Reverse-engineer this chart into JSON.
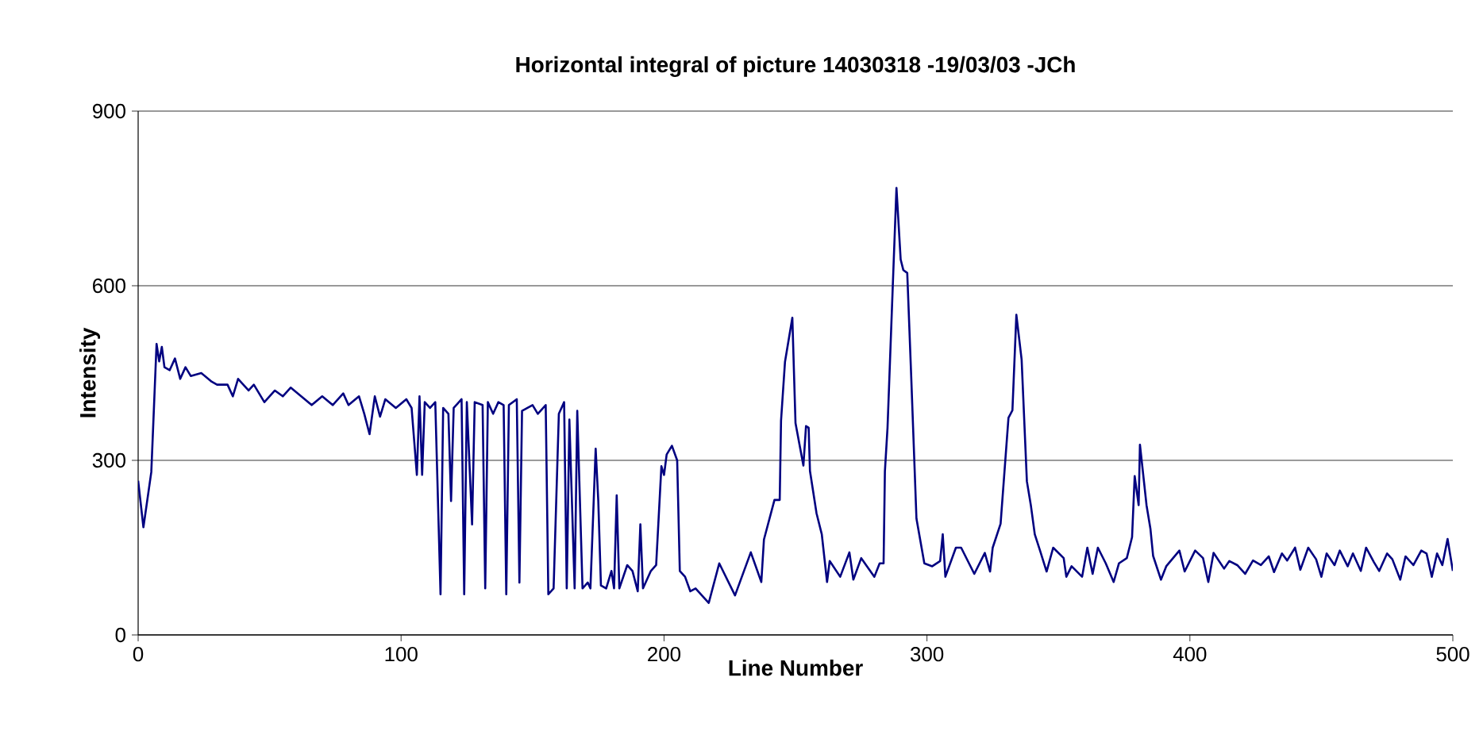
{
  "chart_data": {
    "type": "line",
    "title": "Horizontal integral of picture 14030318 -19/03/03 -JCh",
    "xlabel": "Line Number",
    "ylabel": "Intensity",
    "xlim": [
      0,
      500
    ],
    "ylim": [
      0,
      900
    ],
    "xticks": [
      0,
      100,
      200,
      300,
      400,
      500
    ],
    "yticks": [
      0,
      300,
      600,
      900
    ],
    "grid": "y",
    "marker": "none",
    "line_style": "solid",
    "series": [
      {
        "color": "#000080",
        "x": [
          0,
          2,
          5,
          7,
          8,
          9,
          10,
          12,
          14,
          16,
          18,
          20,
          24,
          28,
          30,
          34,
          36,
          38,
          42,
          44,
          48,
          52,
          55,
          58,
          62,
          66,
          70,
          74,
          78,
          80,
          84,
          86,
          88,
          90,
          92,
          94,
          98,
          102,
          104,
          106,
          107,
          108,
          109,
          111,
          113,
          115,
          116,
          118,
          119,
          120,
          123,
          124,
          125,
          127,
          128,
          131,
          132,
          133,
          135,
          137,
          139,
          140,
          141,
          144,
          145,
          146,
          150,
          152,
          155,
          156,
          158,
          160,
          162,
          163,
          164,
          166,
          167,
          169,
          171,
          172,
          174,
          175,
          176,
          178,
          180,
          181,
          182,
          183,
          186,
          188,
          190,
          191,
          192,
          195,
          197,
          199,
          200,
          201,
          203,
          205,
          206,
          208,
          210,
          212,
          217,
          221,
          227,
          233,
          237,
          238,
          242,
          244,
          244.5,
          246,
          248.8,
          250,
          253,
          254,
          255,
          255.5,
          258,
          260,
          262,
          263,
          267,
          270.5,
          272,
          275,
          280,
          282,
          283.5,
          284,
          285,
          287,
          288.4,
          290,
          291,
          292.5,
          294,
          296,
          299,
          302,
          305,
          306,
          307,
          311,
          313,
          318,
          322,
          324,
          325,
          328,
          331,
          332.5,
          334,
          336,
          338,
          339.5,
          341,
          343,
          345.5,
          348,
          352,
          353,
          355,
          359,
          361,
          363,
          365,
          368,
          371,
          373,
          376,
          378,
          379,
          380.5,
          381,
          383.5,
          385,
          386,
          389,
          391,
          396,
          398,
          402,
          405,
          407,
          409,
          413,
          415,
          418,
          421,
          424,
          427,
          430,
          432,
          435,
          437,
          440,
          442,
          445,
          448,
          450,
          452,
          455,
          457,
          460,
          462,
          465,
          467,
          470,
          472,
          475,
          477,
          480,
          482,
          485,
          488,
          490,
          492,
          494,
          496,
          498,
          500
        ],
        "values": [
          265,
          185,
          280,
          500,
          470,
          495,
          460,
          455,
          475,
          440,
          460,
          445,
          450,
          435,
          430,
          430,
          410,
          440,
          420,
          430,
          400,
          420,
          410,
          425,
          410,
          395,
          410,
          395,
          415,
          395,
          410,
          380,
          345,
          410,
          375,
          405,
          390,
          405,
          390,
          275,
          410,
          275,
          400,
          390,
          400,
          70,
          390,
          380,
          230,
          390,
          405,
          70,
          400,
          190,
          400,
          395,
          80,
          400,
          380,
          400,
          395,
          70,
          395,
          405,
          90,
          385,
          395,
          380,
          395,
          70,
          80,
          380,
          400,
          80,
          370,
          80,
          385,
          80,
          90,
          80,
          320,
          230,
          85,
          80,
          110,
          80,
          240,
          80,
          120,
          110,
          75,
          190,
          80,
          110,
          120,
          290,
          275,
          310,
          325,
          300,
          110,
          100,
          75,
          80,
          55,
          123,
          68,
          142,
          91,
          164,
          232,
          232,
          368,
          469,
          545,
          364,
          291,
          359,
          356,
          282,
          209,
          173,
          91,
          127,
          100,
          142,
          95,
          132,
          100,
          123,
          123,
          281,
          356,
          600,
          768,
          645,
          627,
          622,
          445,
          200,
          123,
          118,
          127,
          173,
          100,
          150,
          150,
          105,
          141,
          109,
          150,
          191,
          373,
          386,
          550,
          473,
          264,
          223,
          173,
          145,
          109,
          150,
          132,
          100,
          118,
          100,
          150,
          105,
          150,
          123,
          91,
          123,
          132,
          168,
          273,
          223,
          327,
          223,
          182,
          136,
          95,
          118,
          145,
          109,
          145,
          132,
          91,
          141,
          114,
          127,
          120,
          105,
          128,
          120,
          135,
          108,
          140,
          128,
          150,
          112,
          150,
          130,
          100,
          140,
          120,
          145,
          118,
          140,
          110,
          150,
          125,
          110,
          140,
          130,
          95,
          135,
          120,
          145,
          140,
          100,
          140,
          120,
          165,
          110
        ]
      }
    ]
  }
}
